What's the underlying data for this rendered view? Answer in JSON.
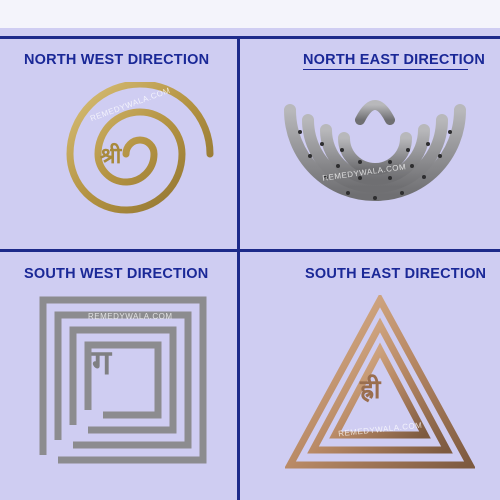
{
  "panels": [
    {
      "title": "NORTH WEST DIRECTION",
      "watermark": "REMEDYWALA.COM",
      "symbol": "श्री",
      "metal": "brass",
      "shape": "spiral-circle"
    },
    {
      "title": "NORTH EAST DIRECTION",
      "watermark": "REMEDYWALA.COM",
      "symbol": "",
      "metal": "silver",
      "shape": "perforated-crescent"
    },
    {
      "title": "SOUTH WEST DIRECTION",
      "watermark": "REMEDYWALA.COM",
      "symbol": "ग",
      "metal": "silver",
      "shape": "spiral-square"
    },
    {
      "title": "SOUTH EAST DIRECTION",
      "watermark": "REMEDYWALA.COM",
      "symbol": "ह्री",
      "metal": "copper",
      "shape": "spiral-triangle"
    }
  ],
  "colors": {
    "background": "#cfcdf2",
    "divider": "#1d2a8a",
    "title": "#1a2897",
    "brass": "#b99a4a",
    "silver": "#8f8f92",
    "copper": "#b98a66"
  }
}
